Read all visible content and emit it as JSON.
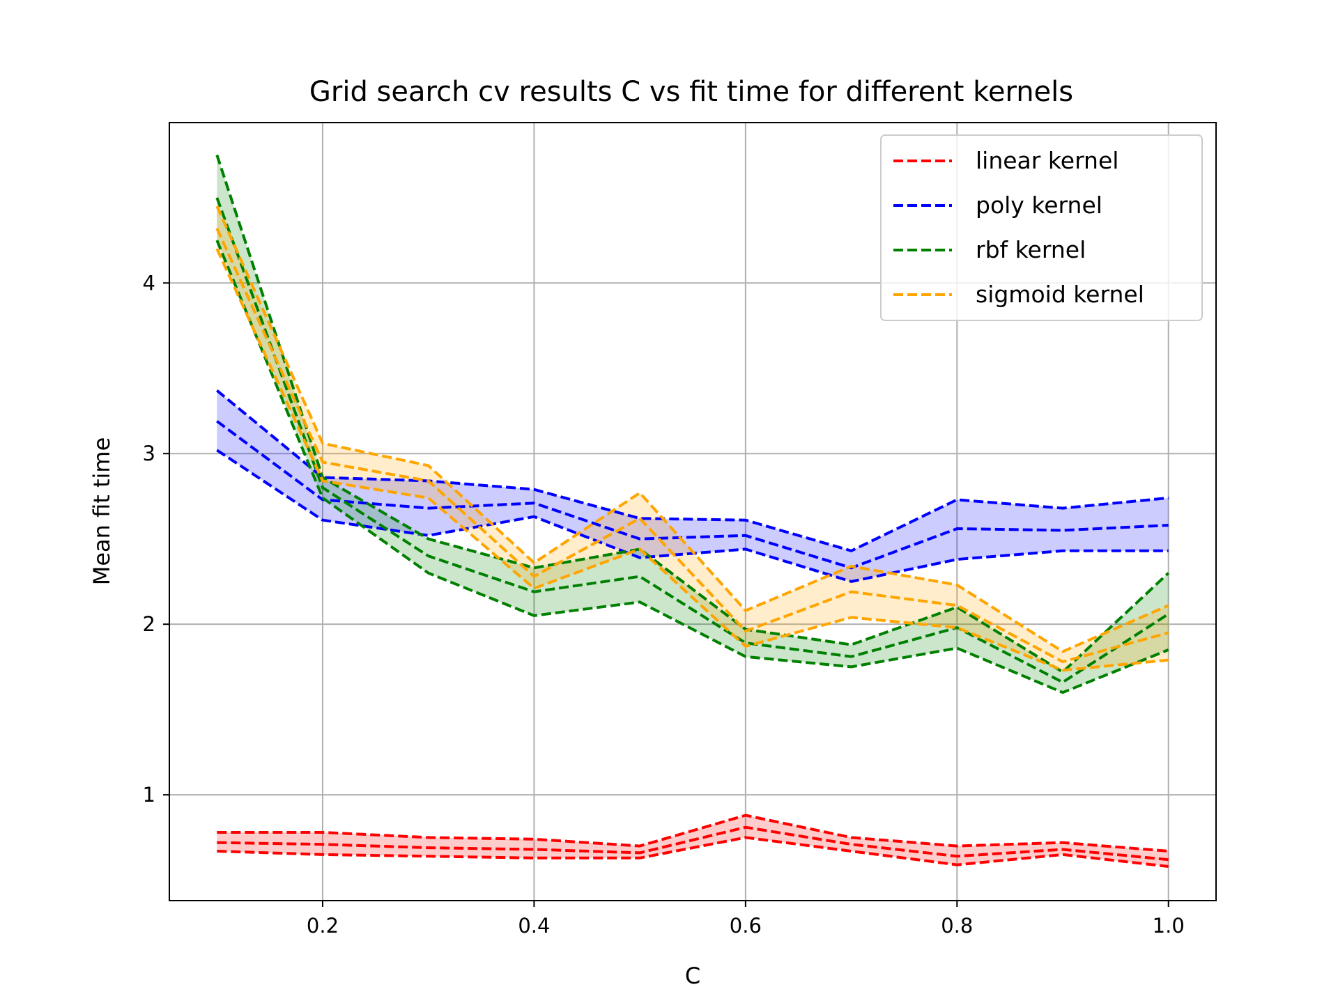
{
  "chart_data": {
    "type": "line",
    "title": "Grid search cv results C vs fit time for different kernels",
    "xlabel": "C",
    "ylabel": "Mean fit time",
    "xlim": [
      0.055,
      1.045
    ],
    "ylim": [
      0.38,
      4.94
    ],
    "xticks": [
      0.2,
      0.4,
      0.6,
      0.8,
      1.0
    ],
    "xtick_labels": [
      "0.2",
      "0.4",
      "0.6",
      "0.8",
      "1.0"
    ],
    "yticks": [
      1,
      2,
      3,
      4
    ],
    "ytick_labels": [
      "1",
      "2",
      "3",
      "4"
    ],
    "grid": true,
    "legend_position": "top-right",
    "x": [
      0.1,
      0.2,
      0.3,
      0.4,
      0.5,
      0.6,
      0.7,
      0.8,
      0.9,
      1.0
    ],
    "series": [
      {
        "name": "linear kernel",
        "color": "#ff0000",
        "mean": [
          0.72,
          0.71,
          0.69,
          0.68,
          0.66,
          0.81,
          0.71,
          0.64,
          0.68,
          0.62
        ],
        "upper": [
          0.78,
          0.78,
          0.75,
          0.74,
          0.7,
          0.88,
          0.75,
          0.7,
          0.72,
          0.67
        ],
        "lower": [
          0.67,
          0.65,
          0.64,
          0.63,
          0.63,
          0.75,
          0.67,
          0.59,
          0.65,
          0.58
        ]
      },
      {
        "name": "poly kernel",
        "color": "#0000ff",
        "mean": [
          3.19,
          2.73,
          2.68,
          2.71,
          2.5,
          2.52,
          2.33,
          2.56,
          2.55,
          2.58
        ],
        "upper": [
          3.37,
          2.86,
          2.84,
          2.79,
          2.62,
          2.61,
          2.43,
          2.73,
          2.68,
          2.74
        ],
        "lower": [
          3.02,
          2.61,
          2.52,
          2.63,
          2.39,
          2.44,
          2.25,
          2.38,
          2.43,
          2.43
        ]
      },
      {
        "name": "rbf kernel",
        "color": "#008000",
        "mean": [
          4.5,
          2.8,
          2.4,
          2.19,
          2.28,
          1.89,
          1.81,
          1.98,
          1.66,
          2.06
        ],
        "upper": [
          4.75,
          2.86,
          2.5,
          2.33,
          2.44,
          1.97,
          1.88,
          2.1,
          1.72,
          2.3
        ],
        "lower": [
          4.25,
          2.74,
          2.3,
          2.05,
          2.13,
          1.81,
          1.75,
          1.86,
          1.6,
          1.85
        ]
      },
      {
        "name": "sigmoid kernel",
        "color": "#ffa500",
        "mean": [
          4.32,
          2.95,
          2.84,
          2.28,
          2.62,
          1.96,
          2.19,
          2.11,
          1.78,
          1.95
        ],
        "upper": [
          4.45,
          3.06,
          2.93,
          2.36,
          2.77,
          2.08,
          2.34,
          2.23,
          1.84,
          2.11
        ],
        "lower": [
          4.2,
          2.84,
          2.74,
          2.21,
          2.44,
          1.87,
          2.04,
          1.98,
          1.73,
          1.79
        ]
      }
    ]
  }
}
